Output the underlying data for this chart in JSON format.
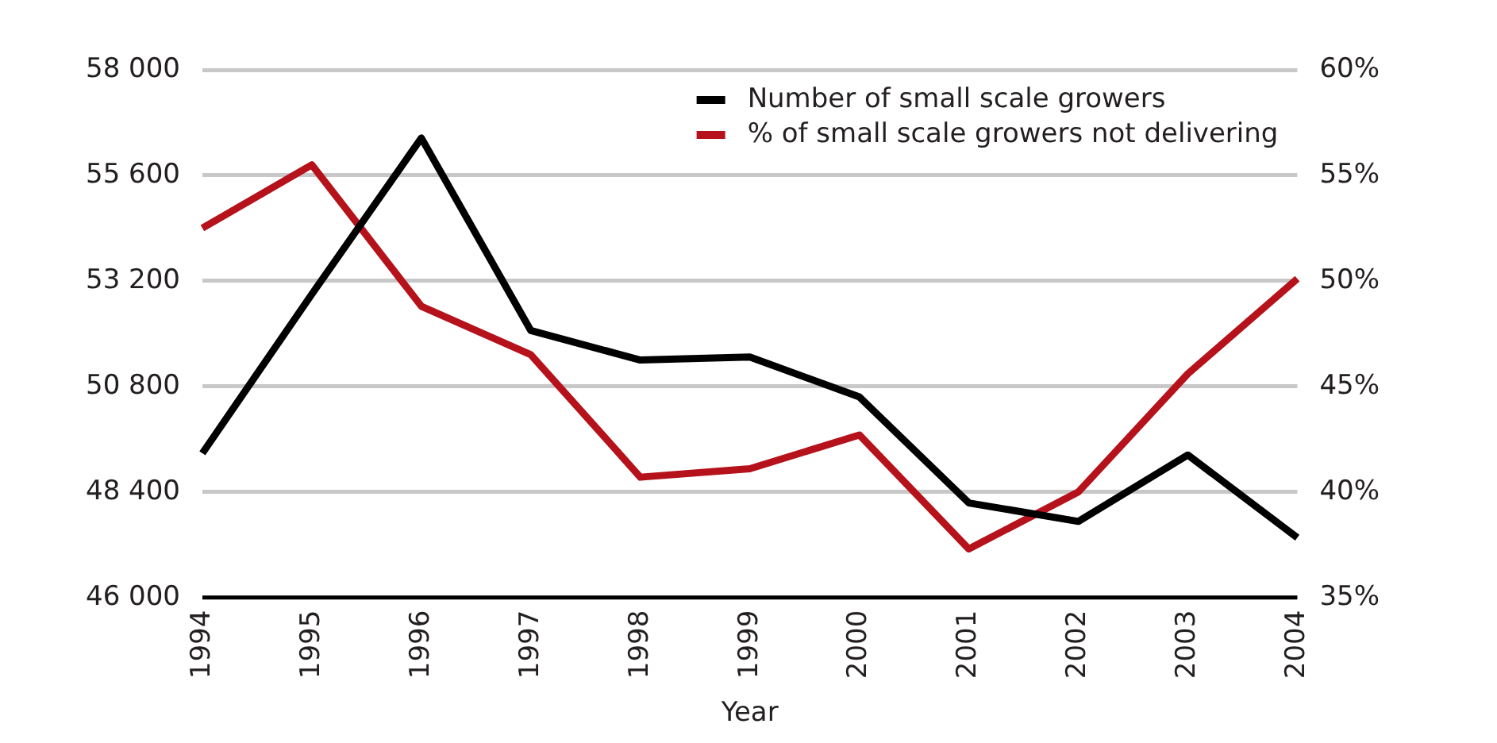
{
  "chart_data": {
    "type": "line",
    "xlabel": "Year",
    "categories": [
      "1994",
      "1995",
      "1996",
      "1997",
      "1998",
      "1999",
      "2000",
      "2001",
      "2002",
      "2003",
      "2004"
    ],
    "series": [
      {
        "name": "Number of small scale growers",
        "color": "#000000",
        "values": [
          49280,
          52900,
          56450,
          52070,
          51400,
          51470,
          50560,
          48150,
          47730,
          49240,
          47360
        ]
      },
      {
        "name": "% of small scale growers not delivering",
        "color": "#b5121b",
        "axis": "y2",
        "values": [
          52.5,
          55.5,
          48.8,
          46.5,
          40.7,
          41.1,
          42.7,
          37.3,
          40.0,
          45.6,
          50.1
        ]
      }
    ],
    "ylim": [
      46000,
      58000
    ],
    "yticks": [
      {
        "value": 46000,
        "label": "46 000"
      },
      {
        "value": 48400,
        "label": "48 400"
      },
      {
        "value": 50800,
        "label": "50 800"
      },
      {
        "value": 53200,
        "label": "53 200"
      },
      {
        "value": 55600,
        "label": "55 600"
      },
      {
        "value": 58000,
        "label": "58 000"
      }
    ],
    "y2lim": [
      35,
      60
    ],
    "y2ticks": [
      {
        "value": 35,
        "label": "35%"
      },
      {
        "value": 40,
        "label": "40%"
      },
      {
        "value": 45,
        "label": "45%"
      },
      {
        "value": 50,
        "label": "50%"
      },
      {
        "value": 55,
        "label": "55%"
      },
      {
        "value": 60,
        "label": "60%"
      }
    ],
    "grid": "y",
    "legend": "top right",
    "marker": "none",
    "line_style": "solid"
  }
}
